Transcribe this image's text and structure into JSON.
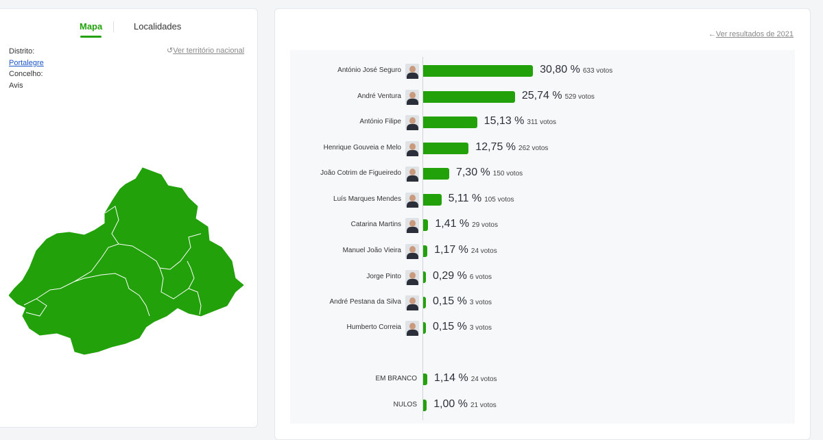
{
  "tabs": {
    "map": "Mapa",
    "localities": "Localidades"
  },
  "location": {
    "district_label": "Distrito:",
    "district": "Portalegre",
    "municipality_label": "Concelho:",
    "municipality": "Avis",
    "national_link": "Ver território nacional"
  },
  "map": {
    "fill_color": "#22a10a"
  },
  "previous_link": "Ver resultados de 2021",
  "votes_suffix": "votos",
  "chart_data": {
    "type": "bar",
    "orientation": "horizontal",
    "categories": [
      "António José Seguro",
      "André Ventura",
      "António Filipe",
      "Henrique Gouveia e Melo",
      "João Cotrim de Figueiredo",
      "Luís Marques Mendes",
      "Catarina Martins",
      "Manuel João Vieira",
      "Jorge Pinto",
      "André Pestana da Silva",
      "Humberto Correia",
      "EM BRANCO",
      "NULOS"
    ],
    "values": [
      30.8,
      25.74,
      15.13,
      12.75,
      7.3,
      5.11,
      1.41,
      1.17,
      0.29,
      0.15,
      0.15,
      1.14,
      1.0
    ],
    "labels": [
      "30,80 %",
      "25,74 %",
      "15,13 %",
      "12,75 %",
      "7,30 %",
      "5,11 %",
      "1,41 %",
      "1,17 %",
      "0,29 %",
      "0,15 %",
      "0,15 %",
      "1,14 %",
      "1,00 %"
    ],
    "votes": [
      "633 votos",
      "529 votos",
      "311 votos",
      "262 votos",
      "150 votos",
      "105 votos",
      "29 votos",
      "24 votos",
      "6 votos",
      "3 votos",
      "3 votos",
      "24 votos",
      "21 votos"
    ],
    "has_photo": [
      true,
      true,
      true,
      true,
      true,
      true,
      true,
      true,
      true,
      true,
      true,
      false,
      false
    ],
    "bar_color": "#22a10a"
  }
}
